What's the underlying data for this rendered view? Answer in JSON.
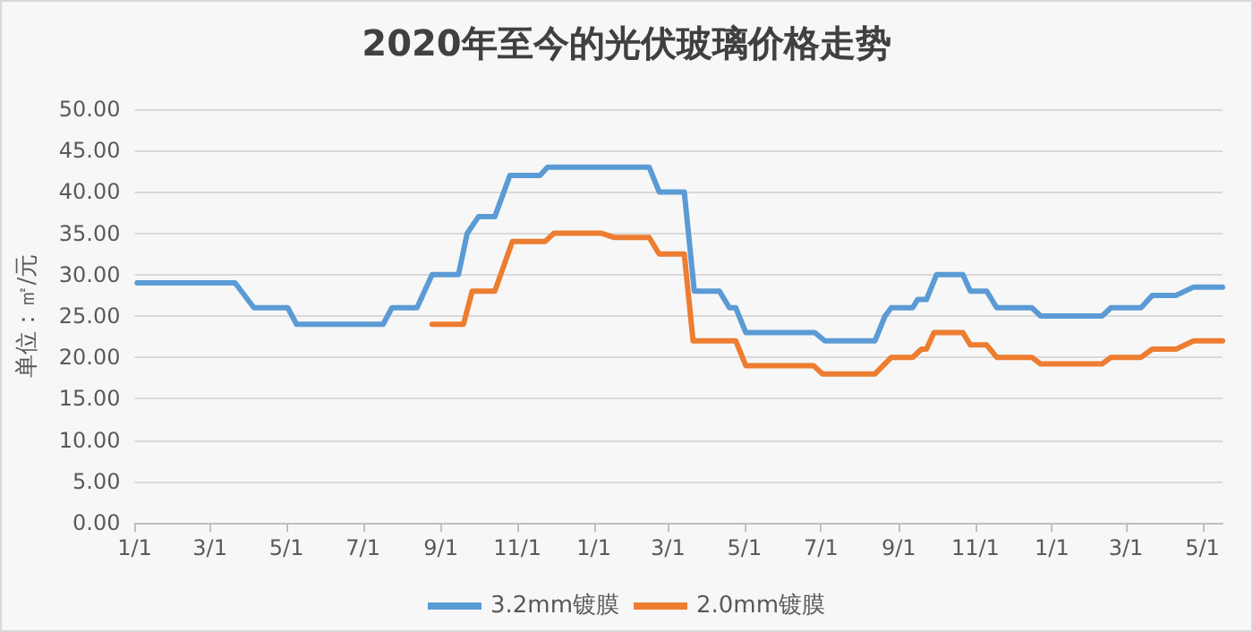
{
  "chart_data": {
    "type": "line",
    "title": "2020年至今的光伏玻璃价格走势",
    "ylabel": "单位：㎡/元",
    "xlim": [
      "2020-01-01",
      "2022-05-17"
    ],
    "xticks": [
      {
        "value": "2020-01-01",
        "label": "1/1"
      },
      {
        "value": "2020-03-01",
        "label": "3/1"
      },
      {
        "value": "2020-05-01",
        "label": "5/1"
      },
      {
        "value": "2020-07-01",
        "label": "7/1"
      },
      {
        "value": "2020-09-01",
        "label": "9/1"
      },
      {
        "value": "2020-11-01",
        "label": "11/1"
      },
      {
        "value": "2021-01-01",
        "label": "1/1"
      },
      {
        "value": "2021-03-01",
        "label": "3/1"
      },
      {
        "value": "2021-05-01",
        "label": "5/1"
      },
      {
        "value": "2021-07-01",
        "label": "7/1"
      },
      {
        "value": "2021-09-01",
        "label": "9/1"
      },
      {
        "value": "2021-11-01",
        "label": "11/1"
      },
      {
        "value": "2022-01-01",
        "label": "1/1"
      },
      {
        "value": "2022-03-01",
        "label": "3/1"
      },
      {
        "value": "2022-05-01",
        "label": "5/1"
      }
    ],
    "ylim": [
      0,
      50
    ],
    "yticks": [
      {
        "value": 0,
        "label": "0.00"
      },
      {
        "value": 5,
        "label": "5.00"
      },
      {
        "value": 10,
        "label": "10.00"
      },
      {
        "value": 15,
        "label": "15.00"
      },
      {
        "value": 20,
        "label": "20.00"
      },
      {
        "value": 25,
        "label": "25.00"
      },
      {
        "value": 30,
        "label": "30.00"
      },
      {
        "value": 35,
        "label": "35.00"
      },
      {
        "value": 40,
        "label": "40.00"
      },
      {
        "value": 45,
        "label": "45.00"
      },
      {
        "value": 50,
        "label": "50.00"
      }
    ],
    "grid": "y",
    "legend": "bottom",
    "marker": "none",
    "line_style": "solid",
    "series": [
      {
        "name": "3.2mm镀膜",
        "color": "#5b9bd5",
        "x": [
          "2020-01-03",
          "2020-03-21",
          "2020-04-05",
          "2020-05-02",
          "2020-05-09",
          "2020-07-17",
          "2020-07-24",
          "2020-08-13",
          "2020-08-25",
          "2020-09-15",
          "2020-09-22",
          "2020-10-01",
          "2020-10-14",
          "2020-10-26",
          "2020-11-19",
          "2020-11-25",
          "2021-02-14",
          "2021-02-22",
          "2021-03-14",
          "2021-03-22",
          "2021-04-11",
          "2021-04-19",
          "2021-04-24",
          "2021-05-02",
          "2021-06-26",
          "2021-07-04",
          "2021-08-13",
          "2021-08-21",
          "2021-08-26",
          "2021-09-12",
          "2021-09-16",
          "2021-09-23",
          "2021-10-01",
          "2021-10-22",
          "2021-10-28",
          "2021-11-10",
          "2021-11-18",
          "2021-12-16",
          "2021-12-23",
          "2022-02-10",
          "2022-02-17",
          "2022-03-13",
          "2022-03-22",
          "2022-04-10",
          "2022-04-24",
          "2022-05-17"
        ],
        "values": [
          29,
          29,
          26,
          26,
          24,
          24,
          26,
          26,
          30,
          30,
          35,
          37,
          37,
          42,
          42,
          43,
          43,
          40,
          40,
          28,
          28,
          26,
          26,
          23,
          23,
          22,
          22,
          25,
          26,
          26,
          27,
          27,
          30,
          30,
          28,
          28,
          26,
          26,
          25,
          25,
          26,
          26,
          27.5,
          27.5,
          28.5,
          28.5
        ]
      },
      {
        "name": "2.0mm镀膜",
        "color": "#ed7d31",
        "x": [
          "2020-08-25",
          "2020-09-19",
          "2020-09-26",
          "2020-10-14",
          "2020-10-28",
          "2020-11-23",
          "2020-11-30",
          "2021-01-07",
          "2021-01-17",
          "2021-02-14",
          "2021-02-22",
          "2021-03-14",
          "2021-03-21",
          "2021-04-24",
          "2021-05-02",
          "2021-06-25",
          "2021-07-02",
          "2021-08-13",
          "2021-08-26",
          "2021-09-12",
          "2021-09-19",
          "2021-09-23",
          "2021-09-29",
          "2021-10-22",
          "2021-10-28",
          "2021-11-10",
          "2021-11-18",
          "2021-12-16",
          "2021-12-23",
          "2022-02-10",
          "2022-02-17",
          "2022-03-13",
          "2022-03-22",
          "2022-04-10",
          "2022-04-24",
          "2022-05-17"
        ],
        "values": [
          24,
          24,
          28,
          28,
          34,
          34,
          35,
          35,
          34.5,
          34.5,
          32.5,
          32.5,
          22,
          22,
          19,
          19,
          18,
          18,
          20,
          20,
          21,
          21,
          23,
          23,
          21.5,
          21.5,
          20,
          20,
          19.2,
          19.2,
          20,
          20,
          21,
          21,
          22,
          22
        ]
      }
    ]
  }
}
